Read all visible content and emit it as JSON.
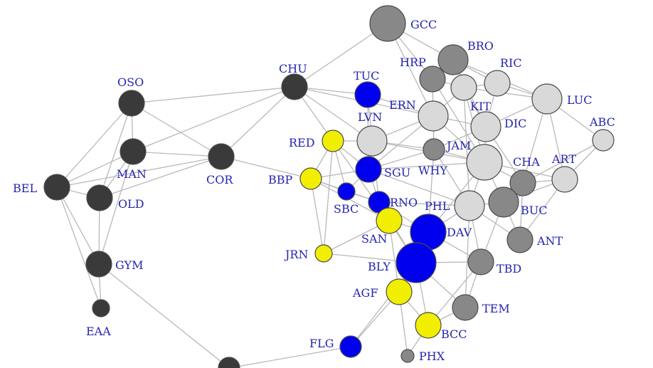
{
  "colors": {
    "dark": "#3a3a3a",
    "mid": "#888888",
    "light": "#d9d9d9",
    "blue": "#0000ee",
    "yellow": "#f2ee00",
    "edge": "#b9b9b9",
    "label": "#2525b0"
  },
  "nodes": [
    {
      "id": "GCC",
      "label": "GCC",
      "group": "mid",
      "size": "xl"
    },
    {
      "id": "BRO",
      "label": "BRO",
      "group": "mid",
      "size": "l"
    },
    {
      "id": "HRP",
      "label": "HRP",
      "group": "mid",
      "size": "m"
    },
    {
      "id": "RIC",
      "label": "RIC",
      "group": "light",
      "size": "m"
    },
    {
      "id": "TUC",
      "label": "TUC",
      "group": "blue",
      "size": "m"
    },
    {
      "id": "CHU",
      "label": "CHU",
      "group": "dark",
      "size": "m"
    },
    {
      "id": "OSO",
      "label": "OSO",
      "group": "dark",
      "size": "m"
    },
    {
      "id": "KIT",
      "label": "KIT",
      "group": "light",
      "size": "m"
    },
    {
      "id": "LUC",
      "label": "LUC",
      "group": "light",
      "size": "l"
    },
    {
      "id": "ERN",
      "label": "ERN",
      "group": "light",
      "size": "l"
    },
    {
      "id": "LVN",
      "label": "LVN",
      "group": "light",
      "size": "l"
    },
    {
      "id": "DIC",
      "label": "DIC",
      "group": "light",
      "size": "l"
    },
    {
      "id": "ABC",
      "label": "ABC",
      "group": "light",
      "size": "s"
    },
    {
      "id": "RED",
      "label": "RED",
      "group": "yellow",
      "size": "s"
    },
    {
      "id": "JAM",
      "label": "JAM",
      "group": "mid",
      "size": "s"
    },
    {
      "id": "MAN",
      "label": "MAN",
      "group": "dark",
      "size": "m"
    },
    {
      "id": "COR",
      "label": "COR",
      "group": "dark",
      "size": "m"
    },
    {
      "id": "CHA",
      "label": "CHA",
      "group": "mid",
      "size": "m"
    },
    {
      "id": "ART",
      "label": "ART",
      "group": "light",
      "size": "m"
    },
    {
      "id": "WHY",
      "label": "WHY",
      "group": "light",
      "size": "xl"
    },
    {
      "id": "SGU",
      "label": "SGU",
      "group": "blue",
      "size": "m"
    },
    {
      "id": "BBP",
      "label": "BBP",
      "group": "yellow",
      "size": "s"
    },
    {
      "id": "BEL",
      "label": "BEL",
      "group": "dark",
      "size": "m"
    },
    {
      "id": "OLD",
      "label": "OLD",
      "group": "dark",
      "size": "m"
    },
    {
      "id": "SBC",
      "label": "SBC",
      "group": "blue",
      "size": "xs"
    },
    {
      "id": "RNO",
      "label": "RNO",
      "group": "blue",
      "size": "s"
    },
    {
      "id": "PHL",
      "label": "PHL",
      "group": "light",
      "size": "l"
    },
    {
      "id": "BUC",
      "label": "BUC",
      "group": "mid",
      "size": "l"
    },
    {
      "id": "SAN",
      "label": "SAN",
      "group": "yellow",
      "size": "m"
    },
    {
      "id": "DAV",
      "label": "DAV",
      "group": "blue",
      "size": "xl"
    },
    {
      "id": "ANT",
      "label": "ANT",
      "group": "mid",
      "size": "m"
    },
    {
      "id": "JRN",
      "label": "JRN",
      "group": "yellow",
      "size": "xs"
    },
    {
      "id": "GYM",
      "label": "GYM",
      "group": "dark",
      "size": "m"
    },
    {
      "id": "BLY",
      "label": "BLY",
      "group": "blue",
      "size": "xxl"
    },
    {
      "id": "TBD",
      "label": "TBD",
      "group": "mid",
      "size": "m"
    },
    {
      "id": "AGF",
      "label": "AGF",
      "group": "yellow",
      "size": "m"
    },
    {
      "id": "TEM",
      "label": "TEM",
      "group": "mid",
      "size": "m"
    },
    {
      "id": "EAA",
      "label": "EAA",
      "group": "dark",
      "size": "xs"
    },
    {
      "id": "BCC",
      "label": "BCC",
      "group": "yellow",
      "size": "m"
    },
    {
      "id": "FLG",
      "label": "FLG",
      "group": "blue",
      "size": "s"
    },
    {
      "id": "PHX",
      "label": "PHX",
      "group": "mid",
      "size": "xxs"
    },
    {
      "id": "BOT",
      "label": "",
      "group": "dark",
      "size": "s"
    }
  ],
  "edges": [
    [
      "OSO",
      "CHU"
    ],
    [
      "OSO",
      "MAN"
    ],
    [
      "OSO",
      "BEL"
    ],
    [
      "OSO",
      "OLD"
    ],
    [
      "OSO",
      "COR"
    ],
    [
      "MAN",
      "BEL"
    ],
    [
      "MAN",
      "OLD"
    ],
    [
      "MAN",
      "COR"
    ],
    [
      "MAN",
      "CHU"
    ],
    [
      "MAN",
      "GYM"
    ],
    [
      "BEL",
      "OLD"
    ],
    [
      "BEL",
      "GYM"
    ],
    [
      "BEL",
      "EAA"
    ],
    [
      "BEL",
      "COR"
    ],
    [
      "OLD",
      "GYM"
    ],
    [
      "OLD",
      "COR"
    ],
    [
      "GYM",
      "EAA"
    ],
    [
      "GYM",
      "BOT"
    ],
    [
      "COR",
      "CHU"
    ],
    [
      "COR",
      "BBP"
    ],
    [
      "CHU",
      "GCC"
    ],
    [
      "CHU",
      "TUC"
    ],
    [
      "CHU",
      "LVN"
    ],
    [
      "CHU",
      "ERN"
    ],
    [
      "CHU",
      "RED"
    ],
    [
      "GCC",
      "HRP"
    ],
    [
      "GCC",
      "BRO"
    ],
    [
      "GCC",
      "ERN"
    ],
    [
      "BRO",
      "HRP"
    ],
    [
      "BRO",
      "KIT"
    ],
    [
      "BRO",
      "RIC"
    ],
    [
      "BRO",
      "LUC"
    ],
    [
      "BRO",
      "DIC"
    ],
    [
      "HRP",
      "KIT"
    ],
    [
      "HRP",
      "ERN"
    ],
    [
      "HRP",
      "JAM"
    ],
    [
      "HRP",
      "WHY"
    ],
    [
      "RIC",
      "KIT"
    ],
    [
      "RIC",
      "LUC"
    ],
    [
      "RIC",
      "DIC"
    ],
    [
      "KIT",
      "DIC"
    ],
    [
      "KIT",
      "ERN"
    ],
    [
      "KIT",
      "WHY"
    ],
    [
      "KIT",
      "LUC"
    ],
    [
      "KIT",
      "PHL"
    ],
    [
      "LUC",
      "ABC"
    ],
    [
      "LUC",
      "DIC"
    ],
    [
      "LUC",
      "CHA"
    ],
    [
      "LUC",
      "ART"
    ],
    [
      "ABC",
      "ART"
    ],
    [
      "ABC",
      "CHA"
    ],
    [
      "DIC",
      "WHY"
    ],
    [
      "DIC",
      "JAM"
    ],
    [
      "DIC",
      "ERN"
    ],
    [
      "DIC",
      "CHA"
    ],
    [
      "TUC",
      "ERN"
    ],
    [
      "TUC",
      "LVN"
    ],
    [
      "TUC",
      "SGU"
    ],
    [
      "ERN",
      "LVN"
    ],
    [
      "ERN",
      "JAM"
    ],
    [
      "ERN",
      "SGU"
    ],
    [
      "ERN",
      "WHY"
    ],
    [
      "LVN",
      "RED"
    ],
    [
      "LVN",
      "SGU"
    ],
    [
      "LVN",
      "JAM"
    ],
    [
      "LVN",
      "WHY"
    ],
    [
      "LVN",
      "RNO"
    ],
    [
      "RED",
      "SGU"
    ],
    [
      "RED",
      "BBP"
    ],
    [
      "RED",
      "SBC"
    ],
    [
      "RED",
      "JRN"
    ],
    [
      "RED",
      "SAN"
    ],
    [
      "JAM",
      "WHY"
    ],
    [
      "JAM",
      "SGU"
    ],
    [
      "JAM",
      "PHL"
    ],
    [
      "JAM",
      "DAV"
    ],
    [
      "WHY",
      "CHA"
    ],
    [
      "WHY",
      "PHL"
    ],
    [
      "WHY",
      "BUC"
    ],
    [
      "WHY",
      "ART"
    ],
    [
      "WHY",
      "DAV"
    ],
    [
      "WHY",
      "SGU"
    ],
    [
      "CHA",
      "BUC"
    ],
    [
      "CHA",
      "ART"
    ],
    [
      "CHA",
      "ANT"
    ],
    [
      "ART",
      "BUC"
    ],
    [
      "ART",
      "ANT"
    ],
    [
      "SGU",
      "SBC"
    ],
    [
      "SGU",
      "RNO"
    ],
    [
      "SGU",
      "PHL"
    ],
    [
      "SGU",
      "BBP"
    ],
    [
      "BBP",
      "SBC"
    ],
    [
      "BBP",
      "JRN"
    ],
    [
      "BBP",
      "SAN"
    ],
    [
      "BBP",
      "RNO"
    ],
    [
      "SBC",
      "RNO"
    ],
    [
      "RNO",
      "SAN"
    ],
    [
      "RNO",
      "DAV"
    ],
    [
      "RNO",
      "BLY"
    ],
    [
      "RNO",
      "PHL"
    ],
    [
      "SAN",
      "BLY"
    ],
    [
      "SAN",
      "JRN"
    ],
    [
      "SAN",
      "AGF"
    ],
    [
      "SAN",
      "DAV"
    ],
    [
      "PHL",
      "DAV"
    ],
    [
      "PHL",
      "BUC"
    ],
    [
      "PHL",
      "TBD"
    ],
    [
      "PHL",
      "ANT"
    ],
    [
      "PHL",
      "TEM"
    ],
    [
      "BUC",
      "ANT"
    ],
    [
      "BUC",
      "TBD"
    ],
    [
      "DAV",
      "BLY"
    ],
    [
      "DAV",
      "TBD"
    ],
    [
      "DAV",
      "AGF"
    ],
    [
      "JRN",
      "BLY"
    ],
    [
      "BLY",
      "AGF"
    ],
    [
      "BLY",
      "BCC"
    ],
    [
      "BLY",
      "TBD"
    ],
    [
      "BLY",
      "FLG"
    ],
    [
      "BLY",
      "TEM"
    ],
    [
      "TBD",
      "TEM"
    ],
    [
      "TBD",
      "BCC"
    ],
    [
      "AGF",
      "FLG"
    ],
    [
      "AGF",
      "BCC"
    ],
    [
      "AGF",
      "PHX"
    ],
    [
      "TEM",
      "BCC"
    ],
    [
      "BCC",
      "PHX"
    ],
    [
      "FLG",
      "BOT"
    ]
  ]
}
